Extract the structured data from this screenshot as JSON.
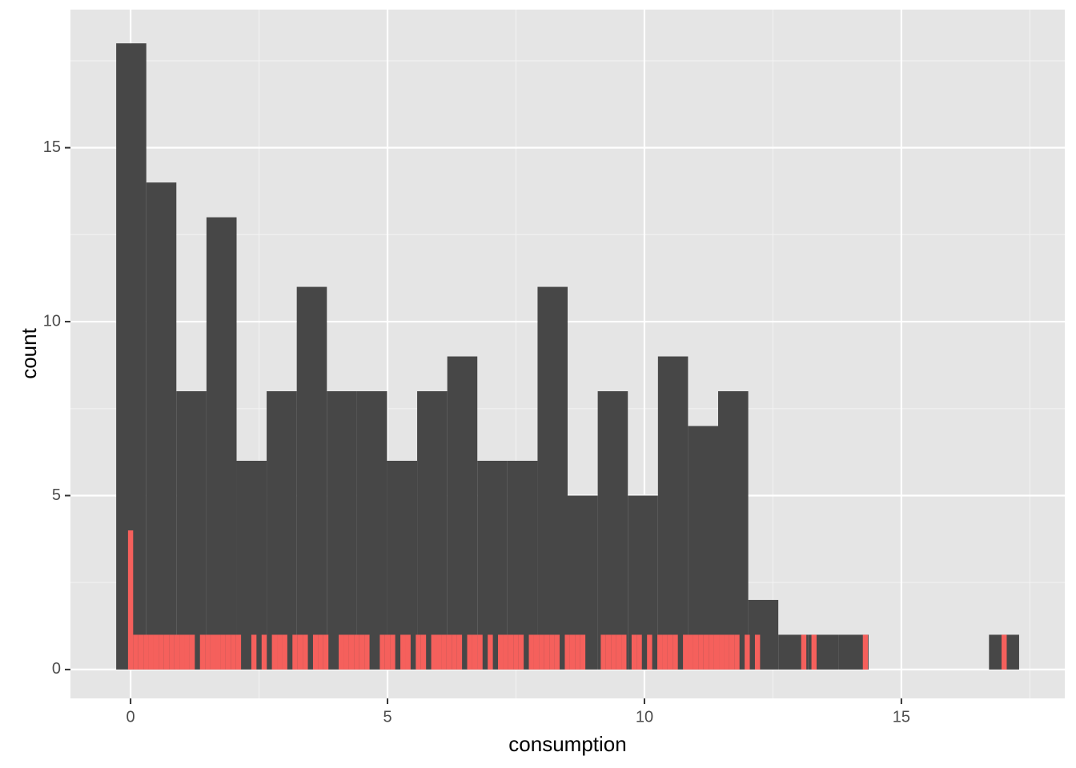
{
  "chart_data": {
    "type": "histogram",
    "xlabel": "consumption",
    "ylabel": "count",
    "xlim": [
      -1.17,
      18.18
    ],
    "ylim": [
      -0.83,
      18.97
    ],
    "xticks": [
      0,
      5,
      10,
      15
    ],
    "yticks": [
      0,
      5,
      10,
      15
    ],
    "grid": true,
    "series": [
      {
        "color": "#474747",
        "bins": [
          -0.28,
          0.306,
          0.891,
          1.477,
          2.063,
          2.648,
          3.234,
          3.82,
          4.406,
          4.991,
          5.577,
          6.163,
          6.748,
          7.334,
          7.92,
          8.505,
          9.091,
          9.677,
          10.263,
          10.848,
          11.434,
          12.02,
          12.605,
          13.191,
          13.777,
          14.362,
          14.948,
          15.534,
          16.12,
          16.705,
          17.291
        ],
        "values": [
          18,
          14,
          8,
          13,
          6,
          8,
          11,
          8,
          8,
          6,
          8,
          9,
          6,
          6,
          11,
          5,
          8,
          5,
          9,
          7,
          8,
          2,
          1,
          1,
          1,
          0,
          0,
          0,
          0,
          1
        ]
      },
      {
        "color": "#f5605c",
        "bins": [
          -0.05,
          0.05,
          0.15,
          0.25,
          0.35,
          0.45,
          0.55,
          0.65,
          0.75,
          0.85,
          0.95,
          1.05,
          1.15,
          1.25,
          1.35,
          1.45,
          1.55,
          1.65,
          1.75,
          1.85,
          1.95,
          2.05,
          2.15,
          2.25,
          2.35,
          2.45,
          2.55,
          2.65,
          2.75,
          2.85,
          2.95,
          3.05,
          3.15,
          3.25,
          3.35,
          3.45,
          3.55,
          3.65,
          3.75,
          3.85,
          3.95,
          4.05,
          4.15,
          4.25,
          4.35,
          4.45,
          4.55,
          4.65,
          4.75,
          4.85,
          4.95,
          5.05,
          5.15,
          5.25,
          5.35,
          5.45,
          5.55,
          5.65,
          5.75,
          5.85,
          5.95,
          6.05,
          6.15,
          6.25,
          6.35,
          6.45,
          6.55,
          6.65,
          6.75,
          6.85,
          6.95,
          7.05,
          7.15,
          7.25,
          7.35,
          7.45,
          7.55,
          7.65,
          7.75,
          7.85,
          7.95,
          8.05,
          8.15,
          8.25,
          8.35,
          8.45,
          8.55,
          8.65,
          8.75,
          8.85,
          8.95,
          9.05,
          9.15,
          9.25,
          9.35,
          9.45,
          9.55,
          9.65,
          9.75,
          9.85,
          9.95,
          10.05,
          10.15,
          10.25,
          10.35,
          10.45,
          10.55,
          10.65,
          10.75,
          10.85,
          10.95,
          11.05,
          11.15,
          11.25,
          11.35,
          11.45,
          11.55,
          11.65,
          11.75,
          11.85,
          11.95,
          12.05,
          12.15,
          12.25,
          12.35,
          12.45,
          12.55,
          12.65,
          12.75,
          12.85,
          12.95,
          13.05,
          13.15,
          13.25,
          13.35,
          13.45,
          13.55,
          13.65,
          13.75,
          13.85,
          13.95,
          14.05,
          14.15,
          14.25,
          14.35,
          14.45,
          14.55,
          14.65,
          14.75,
          14.85,
          14.95,
          15.05,
          15.15,
          15.25,
          15.35,
          15.45,
          15.55,
          15.65,
          15.75,
          15.85,
          15.95,
          16.05,
          16.15,
          16.25,
          16.35,
          16.45,
          16.55,
          16.65,
          16.75,
          16.85,
          16.95,
          17.05
        ],
        "values": [
          4,
          1,
          1,
          1,
          1,
          1,
          1,
          1,
          1,
          1,
          1,
          1,
          1,
          0,
          1,
          1,
          1,
          1,
          1,
          1,
          1,
          1,
          0,
          0,
          1,
          0,
          1,
          0,
          1,
          1,
          1,
          0,
          1,
          1,
          1,
          0,
          1,
          1,
          1,
          0,
          0,
          1,
          1,
          1,
          1,
          1,
          1,
          0,
          0,
          1,
          1,
          1,
          0,
          1,
          1,
          0,
          1,
          1,
          0,
          1,
          1,
          1,
          1,
          1,
          1,
          0,
          1,
          1,
          1,
          0,
          1,
          0,
          1,
          1,
          1,
          1,
          1,
          0,
          1,
          1,
          1,
          1,
          1,
          1,
          0,
          1,
          1,
          1,
          1,
          0,
          0,
          0,
          1,
          1,
          1,
          1,
          1,
          0,
          1,
          1,
          0,
          1,
          0,
          1,
          1,
          1,
          1,
          0,
          1,
          1,
          1,
          1,
          1,
          1,
          1,
          1,
          1,
          1,
          1,
          0,
          1,
          0,
          1,
          0,
          0,
          0,
          0,
          0,
          0,
          0,
          0,
          1,
          0,
          1,
          0,
          0,
          0,
          0,
          0,
          0,
          0,
          0,
          0,
          1,
          0,
          0,
          0,
          0,
          0,
          0,
          0,
          0,
          0,
          0,
          0,
          0,
          0,
          0,
          0,
          0,
          0,
          0,
          0,
          0,
          0,
          0,
          0,
          0,
          0,
          0,
          1
        ]
      }
    ]
  }
}
